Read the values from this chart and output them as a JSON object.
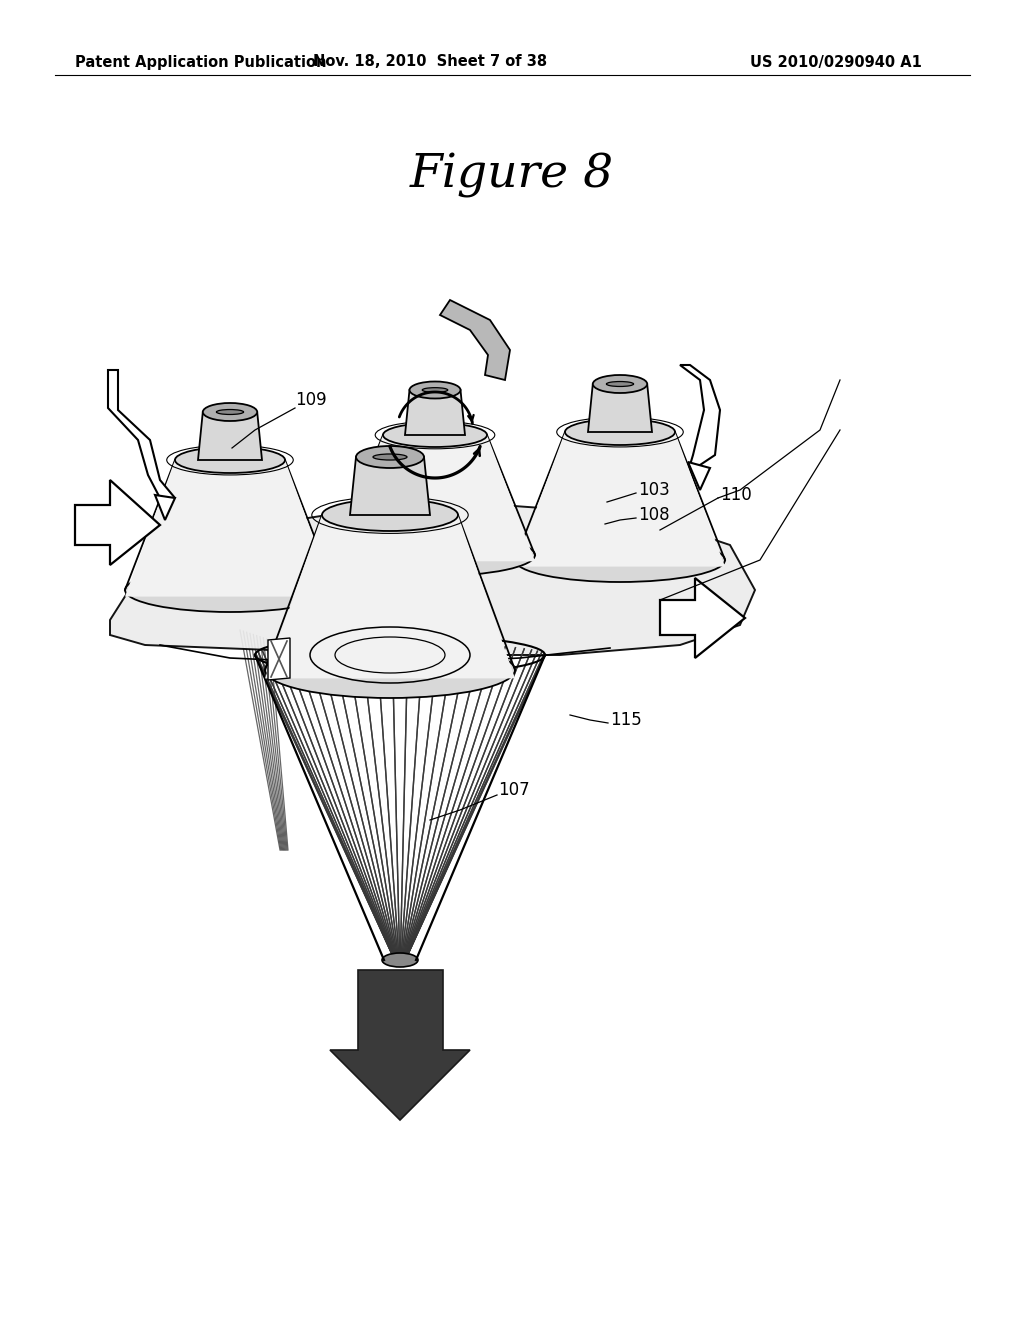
{
  "background_color": "#ffffff",
  "header_left": "Patent Application Publication",
  "header_center": "Nov. 18, 2010  Sheet 7 of 38",
  "header_right": "US 2010/0290940 A1",
  "figure_title": "Figure 8",
  "header_fontsize": 10.5,
  "title_fontsize": 34,
  "label_fontsize": 12,
  "light_gray": "#d8d8d8",
  "mid_gray": "#b0b0b0",
  "dark_gray": "#606060",
  "white_ish": "#f2f2f2",
  "black": "#000000",
  "arrow_dark": "#3a3a3a"
}
